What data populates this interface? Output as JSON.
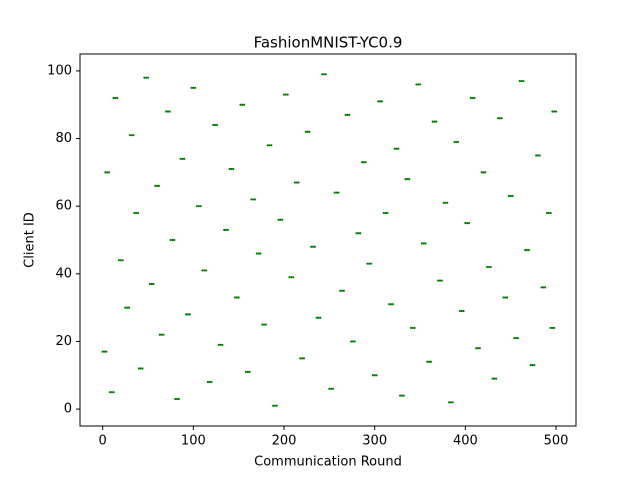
{
  "chart_data": {
    "type": "scatter",
    "title": "FashionMNIST-YC0.9",
    "x_label": "Communication Round",
    "y_label": "Client ID",
    "color": "green",
    "xlim": [
      -25,
      522
    ],
    "ylim": [
      -5,
      105
    ],
    "xticks": [
      0,
      100,
      200,
      300,
      400,
      500
    ],
    "yticks": [
      0,
      20,
      40,
      60,
      80,
      100
    ],
    "x": [
      0,
      2,
      4,
      3,
      5,
      7,
      8,
      10,
      12,
      12,
      14,
      16,
      18,
      20,
      22,
      25,
      27,
      29,
      30,
      32,
      34,
      35,
      37,
      39,
      40,
      42,
      44,
      46,
      48,
      50,
      52,
      54,
      56,
      58,
      60,
      62,
      63,
      65,
      67,
      70,
      72,
      74,
      75,
      77,
      79,
      80,
      82,
      84,
      86,
      88,
      90,
      92,
      94,
      96,
      98,
      100,
      102,
      104,
      106,
      108,
      110,
      112,
      114,
      116,
      118,
      120,
      122,
      124,
      126,
      128,
      130,
      132,
      134,
      136,
      138,
      140,
      142,
      144,
      146,
      148,
      150,
      152,
      154,
      156,
      158,
      160,
      162,
      164,
      166,
      168,
      170,
      172,
      174,
      176,
      178,
      180,
      182,
      184,
      186,
      188,
      190,
      192,
      194,
      196,
      198,
      200,
      202,
      204,
      206,
      208,
      210,
      212,
      214,
      216,
      218,
      220,
      222,
      224,
      226,
      228,
      230,
      232,
      234,
      236,
      238,
      240,
      242,
      244,
      246,
      250,
      252,
      254,
      256,
      258,
      260,
      262,
      264,
      266,
      268,
      270,
      272,
      274,
      276,
      278,
      280,
      282,
      284,
      286,
      288,
      290,
      292,
      294,
      296,
      298,
      300,
      302,
      304,
      306,
      308,
      310,
      312,
      314,
      316,
      318,
      320,
      322,
      324,
      326,
      328,
      330,
      332,
      334,
      336,
      338,
      340,
      342,
      344,
      346,
      348,
      350,
      352,
      354,
      356,
      358,
      360,
      362,
      364,
      366,
      368,
      370,
      372,
      374,
      376,
      378,
      380,
      382,
      384,
      386,
      388,
      390,
      392,
      394,
      396,
      398,
      400,
      402,
      404,
      406,
      408,
      410,
      412,
      414,
      416,
      418,
      420,
      422,
      424,
      426,
      428,
      430,
      432,
      434,
      436,
      438,
      440,
      442,
      444,
      446,
      448,
      450,
      452,
      454,
      456,
      458,
      460,
      462,
      464,
      466,
      468,
      470,
      472,
      474,
      476,
      478,
      480,
      482,
      484,
      486,
      488,
      490,
      492,
      494,
      494,
      496,
      498,
      496,
      498,
      500
    ],
    "y": [
      17,
      17,
      17,
      70,
      70,
      70,
      5,
      5,
      5,
      92,
      92,
      92,
      44,
      44,
      44,
      30,
      30,
      30,
      81,
      81,
      81,
      58,
      58,
      58,
      12,
      12,
      12,
      98,
      98,
      98,
      37,
      37,
      37,
      66,
      66,
      66,
      22,
      22,
      22,
      88,
      88,
      88,
      50,
      50,
      50,
      3,
      3,
      3,
      74,
      74,
      74,
      28,
      28,
      28,
      95,
      95,
      95,
      60,
      60,
      60,
      41,
      41,
      41,
      8,
      8,
      8,
      84,
      84,
      84,
      19,
      19,
      19,
      53,
      53,
      53,
      71,
      71,
      71,
      33,
      33,
      33,
      90,
      90,
      90,
      11,
      11,
      11,
      62,
      62,
      62,
      46,
      46,
      46,
      25,
      25,
      25,
      78,
      78,
      78,
      1,
      1,
      1,
      56,
      56,
      56,
      93,
      93,
      93,
      39,
      39,
      39,
      67,
      67,
      67,
      15,
      15,
      15,
      82,
      82,
      82,
      48,
      48,
      48,
      27,
      27,
      27,
      99,
      99,
      99,
      6,
      6,
      6,
      64,
      64,
      64,
      35,
      35,
      35,
      87,
      87,
      87,
      20,
      20,
      20,
      52,
      52,
      52,
      73,
      73,
      73,
      43,
      43,
      43,
      10,
      10,
      10,
      91,
      91,
      91,
      58,
      58,
      58,
      31,
      31,
      31,
      77,
      77,
      77,
      4,
      4,
      4,
      68,
      68,
      68,
      24,
      24,
      24,
      96,
      96,
      96,
      49,
      49,
      49,
      14,
      14,
      14,
      85,
      85,
      85,
      38,
      38,
      38,
      61,
      61,
      61,
      2,
      2,
      2,
      79,
      79,
      79,
      29,
      29,
      29,
      55,
      55,
      55,
      92,
      92,
      92,
      18,
      18,
      18,
      70,
      70,
      70,
      42,
      42,
      42,
      9,
      9,
      9,
      86,
      86,
      86,
      33,
      33,
      33,
      63,
      63,
      63,
      21,
      21,
      21,
      97,
      97,
      97,
      47,
      47,
      47,
      13,
      13,
      13,
      75,
      75,
      75,
      36,
      36,
      36,
      58,
      58,
      58,
      24,
      24,
      24,
      88,
      88,
      88
    ]
  }
}
